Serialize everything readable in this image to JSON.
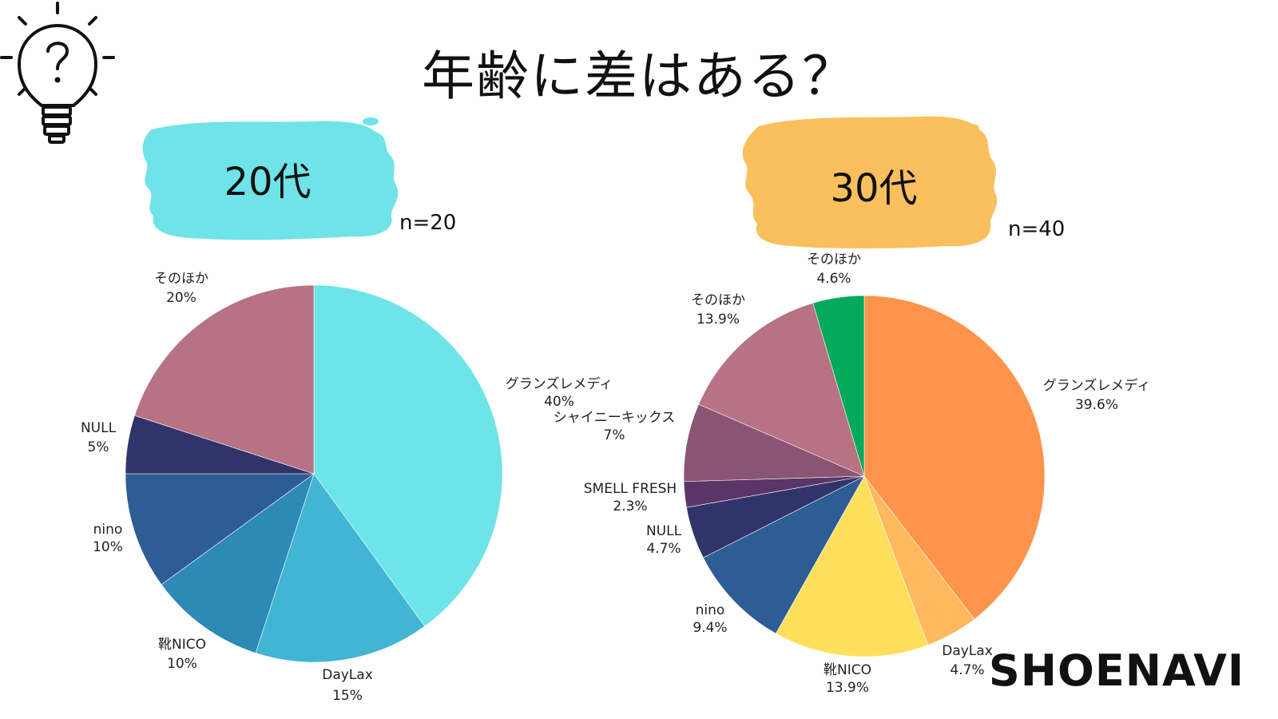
{
  "title": "年齢に差はある？",
  "brand": "SHOENAVI",
  "icons": {
    "bulb": "lightbulb-question-icon"
  },
  "chart_data": [
    {
      "type": "pie",
      "group_label": "20代",
      "n_label": "n=20",
      "brush_color": "#6ee3e8",
      "slices": [
        {
          "label": "グランズレメディ",
          "value_text": "40%",
          "value": 40,
          "color": "#6ce4e8"
        },
        {
          "label": "DayLax",
          "value_text": "15%",
          "value": 15,
          "color": "#42b5d4"
        },
        {
          "label": "靴NICO",
          "value_text": "10%",
          "value": 10,
          "color": "#2d89b6"
        },
        {
          "label": "nino",
          "value_text": "10%",
          "value": 10,
          "color": "#2e5c95"
        },
        {
          "label": "NULL",
          "value_text": "5%",
          "value": 5,
          "color": "#31346a"
        },
        {
          "label": "そのほか",
          "value_text": "20%",
          "value": 20,
          "color": "#b77283"
        }
      ]
    },
    {
      "type": "pie",
      "group_label": "30代",
      "n_label": "n=40",
      "brush_color": "#fbbf5e",
      "slices": [
        {
          "label": "グランズレメディ",
          "value_text": "39.6%",
          "value": 39.6,
          "color": "#fe944c"
        },
        {
          "label": "DayLax",
          "value_text": "4.7%",
          "value": 4.7,
          "color": "#fdb95c"
        },
        {
          "label": "靴NICO",
          "value_text": "13.9%",
          "value": 13.9,
          "color": "#fedf5c"
        },
        {
          "label": "nino",
          "value_text": "9.4%",
          "value": 9.4,
          "color": "#2e5c95"
        },
        {
          "label": "NULL",
          "value_text": "4.7%",
          "value": 4.7,
          "color": "#31346a"
        },
        {
          "label": "SMELL FRESH",
          "value_text": "2.3%",
          "value": 2.3,
          "color": "#5a3568"
        },
        {
          "label": "シャイニーキックス",
          "value_text": "7%",
          "value": 7,
          "color": "#8a5473"
        },
        {
          "label": "そのほか",
          "value_text": "13.9%",
          "value": 13.9,
          "color": "#b77283"
        },
        {
          "label": "そのほか",
          "value_text": "4.6%",
          "value": 4.6,
          "color": "#02aa5a"
        }
      ]
    }
  ]
}
